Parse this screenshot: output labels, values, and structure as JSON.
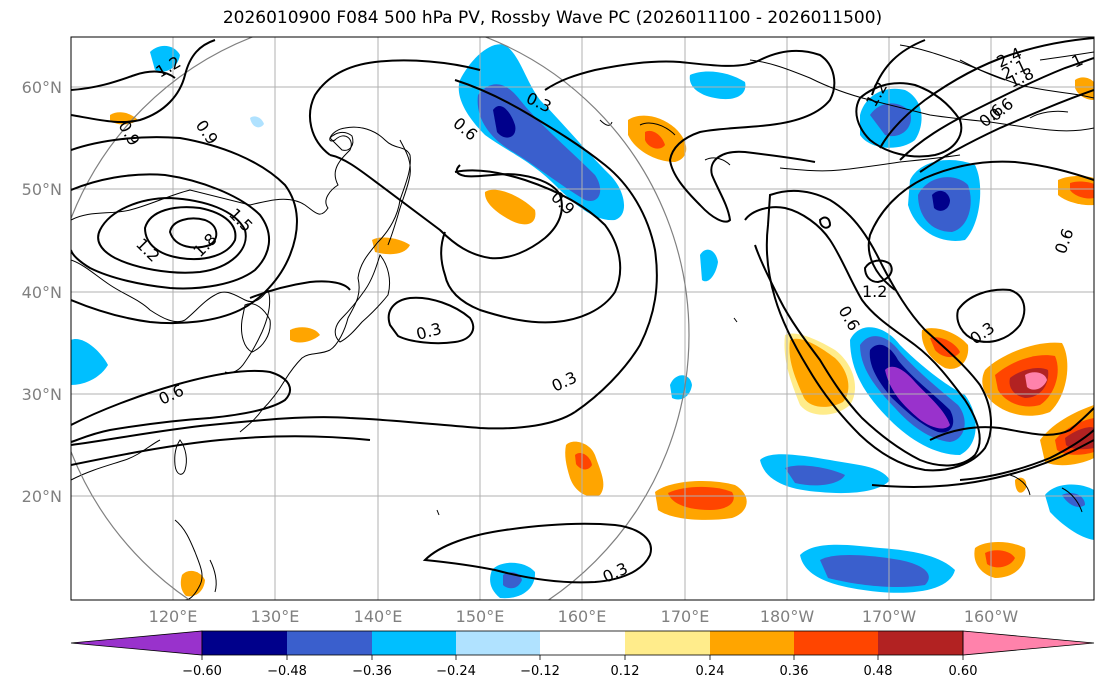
{
  "title": "2026010900 F084 500 hPa PV, Rossby Wave PC (2026011100 - 2026011500)",
  "longitude_ticks": [
    "120°E",
    "130°E",
    "140°E",
    "150°E",
    "160°E",
    "170°E",
    "180°W",
    "170°W",
    "160°W"
  ],
  "latitude_ticks": [
    "60°N",
    "50°N",
    "40°N",
    "30°N",
    "20°N"
  ],
  "colorbar": {
    "tick_labels": [
      "−0.60",
      "−0.48",
      "−0.36",
      "−0.24",
      "−0.12",
      "0.12",
      "0.24",
      "0.36",
      "0.48",
      "0.60"
    ],
    "colors": [
      "#9932CC",
      "#00008B",
      "#3A5FCD",
      "#00BFFF",
      "#B0E2FF",
      "#FFFFFF",
      "#FFEC8B",
      "#FFA500",
      "#FF4500",
      "#B22222",
      "#FF82AB"
    ]
  },
  "contour_labels": [
    "1.2",
    "0.9",
    "0.9",
    "1.5",
    "1.8",
    "1.2",
    "0.6",
    "0.3",
    "0.6",
    "0.9",
    "0.3",
    "0.3",
    "0.6",
    "0.3",
    "1.2",
    "0.6",
    "0.3",
    "1.2",
    "0.6",
    "2.4",
    "2.1",
    "1.8",
    "1",
    "0.6"
  ],
  "colors": {
    "contour": "#000000",
    "gridline": "#b0b0b0",
    "coastline": "#000000",
    "circle": "#808080",
    "tick_label": "#808080"
  }
}
